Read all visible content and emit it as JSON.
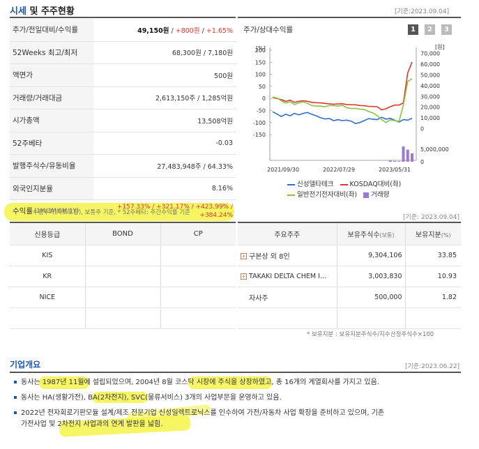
{
  "header": {
    "title_a": "시세",
    "title_b": "및 주주현황",
    "basedate": "[기준:2023.09.04]"
  },
  "price_rows": [
    {
      "label": "주가/전일대비/수익률",
      "value": "49,150원",
      "change": "+800원",
      "rate": "+1.65%"
    },
    {
      "label": "52Weeks 최고/최저",
      "value": "68,300원 / 7,180원"
    },
    {
      "label": "액면가",
      "value": "500원"
    },
    {
      "label": "거래량/거래대금",
      "value": "2,613,150주 / 1,285억원"
    },
    {
      "label": "시가총액",
      "value": "13,508억원"
    },
    {
      "label": "52주베타",
      "value": "-0.03"
    },
    {
      "label": "발행주식수/유동비율",
      "value": "27,483,948주 / 64.33%"
    },
    {
      "label": "외국인지분율",
      "value": "8.16%"
    }
  ],
  "returns_row": {
    "label": "수익률",
    "label_sub": "(1M/3M/6M/1Y)",
    "line1": "+157.33% / +321.17% / +423.99% /",
    "line2": "+384.24%"
  },
  "note1": "* 수정주가(차트포함), 보통주 기준, * 52주베타: 주간수익률 기준",
  "chart": {
    "title": "주가/상대수익률",
    "periods": [
      "1",
      "2",
      "3"
    ],
    "left_unit": "[%]",
    "right_unit": "[원]",
    "legend": {
      "s1": "신성델타테크",
      "s2": "KOSDAQ대비(좌)",
      "s3": "일반전기전자대비(좌)",
      "s4": "거래량"
    },
    "colors": {
      "s1": "#2e6fcf",
      "s2": "#e0362b",
      "s3": "#8cc43f",
      "vol": "#9b7ad6"
    }
  },
  "chart_data": {
    "type": "line",
    "x_ticks": [
      "2021/09/30",
      "2022/07/29",
      "2023/05/31"
    ],
    "left_axis": {
      "label": "[%]",
      "ticks": [
        "200",
        "150",
        "100",
        "50",
        "0",
        "-50",
        "-100",
        "-150"
      ],
      "ylim": [
        -170,
        200
      ]
    },
    "right_axis": {
      "label": "[원]",
      "ticks": [
        "70,000",
        "60,000",
        "50,000",
        "40,000",
        "30,000",
        "20,000",
        "10,000",
        "0"
      ],
      "ylim": [
        -10000,
        73000
      ]
    },
    "volume_axis": {
      "ticks": [
        "5,000,000",
        "0"
      ]
    },
    "series": [
      {
        "name": "신성델타테크",
        "axis": "left",
        "values": [
          -55,
          -65,
          -75,
          -65,
          -72,
          -62,
          -68,
          -62,
          -58,
          -66,
          -72,
          -80,
          -85,
          -83,
          -92,
          -88,
          -92,
          -90,
          -94,
          -104,
          -100,
          -92,
          -84,
          -86,
          -88,
          -78,
          -86,
          -82,
          -90,
          -98,
          -88,
          -90,
          -82
        ]
      },
      {
        "name": "KOSDAQ대비(좌)",
        "axis": "right",
        "values": [
          29000,
          28000,
          27000,
          25500,
          26500,
          24500,
          25500,
          26000,
          25500,
          24500,
          24200,
          24000,
          23500,
          23000,
          22800,
          23000,
          23200,
          22500,
          22300,
          22200,
          21600,
          21300,
          20800,
          20700,
          20500,
          17500,
          18500,
          20500,
          22000,
          22000,
          24000,
          52000,
          62000
        ]
      },
      {
        "name": "일반전기전자대비(좌)",
        "axis": "right",
        "values": [
          29500,
          28500,
          26000,
          24000,
          25000,
          22500,
          24000,
          25000,
          23500,
          21500,
          21000,
          21000,
          20500,
          21500,
          21500,
          21000,
          21800,
          19500,
          18800,
          18800,
          18300,
          17800,
          16000,
          14800,
          12200,
          8500,
          5700,
          8200,
          7500,
          6800,
          22000,
          44000,
          46500
        ]
      },
      {
        "name": "거래량",
        "axis": "volume",
        "values": [
          0,
          0,
          0,
          0,
          0,
          0,
          0,
          0,
          0,
          0,
          0,
          0,
          0,
          0,
          0,
          0,
          0,
          0,
          0,
          0,
          0,
          0,
          0,
          0,
          0,
          0,
          0,
          600000,
          400000,
          300000,
          8200000,
          6500000,
          4500000
        ]
      }
    ]
  },
  "ratings": {
    "headers": [
      "신용등급",
      "BOND",
      "CP"
    ],
    "rows": [
      {
        "agency": "KIS",
        "bond": "",
        "cp": ""
      },
      {
        "agency": "KR",
        "bond": "",
        "cp": ""
      },
      {
        "agency": "NICE",
        "bond": "",
        "cp": ""
      }
    ]
  },
  "holders": {
    "basedate": "[기준: 2023.09.04]",
    "headers": [
      "주요주주",
      "보유주식수",
      "(보통)",
      "보유지분",
      "(%)"
    ],
    "rows": [
      {
        "name": "구본상 외 8인",
        "shares": "9,304,106",
        "pct": "33.85",
        "expand": true
      },
      {
        "name": "TAKAKI DELTA CHEM I...",
        "shares": "3,003,830",
        "pct": "10.93",
        "expand": true
      },
      {
        "name": "자사주",
        "shares": "500,000",
        "pct": "1.82",
        "expand": false
      }
    ],
    "note": "* 보유지분 : 보유지분주식수/지수산정주식수×100"
  },
  "about": {
    "title": "기업개요",
    "basedate": "[기준:2023.06.22]",
    "items": [
      "동사는 1987년 11월에 설립되었으며, 2004년 8월 코스닥 시장에 주식을 상장하였고, 총 16개의 계열회사를 가지고 있음.",
      "동사는 HA(생활가전), BA(2차전지), SVC(물류서비스) 3개의 사업부문을 운영하고 있음.",
      "2022년 전자회로기판모듈 설계/제조 전문기업 신성일렉트로닉스를 인수하여 가전/자동차 사업 확장을 준비하고 있으며, 기존",
      "가전사업 및 2차전지 사업과의 연계 발판을 넓힘."
    ]
  }
}
